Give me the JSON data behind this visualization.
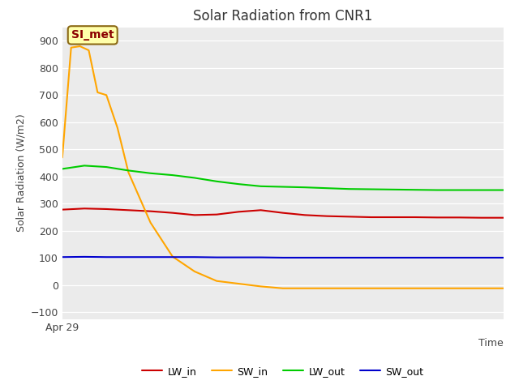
{
  "title": "Solar Radiation from CNR1",
  "ylabel": "Solar Radiation (W/m2)",
  "xlabel": "Time",
  "xlim": [
    0,
    20
  ],
  "ylim": [
    -125,
    950
  ],
  "yticks": [
    -100,
    0,
    100,
    200,
    300,
    400,
    500,
    600,
    700,
    800,
    900
  ],
  "annotation_text": "SI_met",
  "axes_bg_color": "#ebebeb",
  "fig_bg_color": "#ffffff",
  "lines": {
    "LW_in": {
      "color": "#cc0000",
      "x": [
        0,
        1,
        2,
        3,
        4,
        5,
        6,
        7,
        8,
        9,
        10,
        11,
        12,
        13,
        14,
        15,
        16,
        17,
        18,
        19,
        20
      ],
      "y": [
        278,
        282,
        280,
        276,
        272,
        266,
        258,
        260,
        270,
        276,
        266,
        258,
        254,
        252,
        250,
        250,
        250,
        249,
        249,
        248,
        248
      ]
    },
    "SW_in": {
      "color": "#ffa500",
      "x": [
        0,
        0.4,
        0.8,
        1.2,
        1.6,
        2.0,
        2.5,
        3.0,
        4.0,
        5.0,
        6.0,
        7.0,
        8.0,
        9.0,
        10.0,
        11.0,
        12.0,
        13.0,
        14.0,
        15.0,
        16.0,
        17.0,
        18.0,
        19.0,
        20.0
      ],
      "y": [
        470,
        875,
        880,
        865,
        710,
        700,
        580,
        415,
        230,
        105,
        50,
        15,
        5,
        -5,
        -12,
        -12,
        -12,
        -12,
        -12,
        -12,
        -12,
        -12,
        -12,
        -12,
        -12
      ]
    },
    "LW_out": {
      "color": "#00cc00",
      "x": [
        0,
        1,
        2,
        3,
        4,
        5,
        6,
        7,
        8,
        9,
        10,
        11,
        12,
        13,
        14,
        15,
        16,
        17,
        18,
        19,
        20
      ],
      "y": [
        428,
        440,
        435,
        422,
        412,
        405,
        395,
        382,
        372,
        364,
        362,
        360,
        357,
        354,
        353,
        352,
        351,
        350,
        350,
        350,
        350
      ]
    },
    "SW_out": {
      "color": "#0000cc",
      "x": [
        0,
        1,
        2,
        3,
        4,
        5,
        6,
        7,
        8,
        9,
        10,
        11,
        12,
        13,
        14,
        15,
        16,
        17,
        18,
        19,
        20
      ],
      "y": [
        103,
        104,
        103,
        103,
        103,
        103,
        103,
        102,
        102,
        102,
        101,
        101,
        101,
        101,
        101,
        101,
        101,
        101,
        101,
        101,
        101
      ]
    }
  },
  "legend_order": [
    "LW_in",
    "SW_in",
    "LW_out",
    "SW_out"
  ],
  "title_fontsize": 12,
  "label_fontsize": 9,
  "tick_fontsize": 9,
  "legend_fontsize": 9,
  "linewidth": 1.5
}
